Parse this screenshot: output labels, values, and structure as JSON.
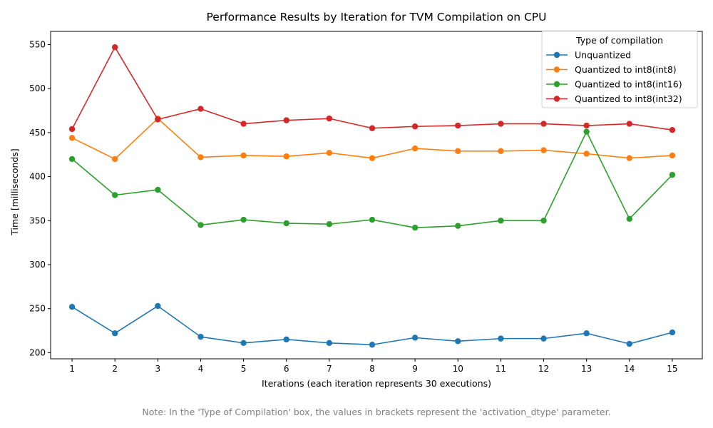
{
  "chart_data": {
    "type": "line",
    "title": "Performance Results by Iteration for TVM Compilation on CPU",
    "xlabel": "Iterations (each iteration represents 30 executions)",
    "ylabel": "Time [milliseconds]",
    "x": [
      1,
      2,
      3,
      4,
      5,
      6,
      7,
      8,
      9,
      10,
      11,
      12,
      13,
      14,
      15
    ],
    "xlim": [
      0.5,
      15.7
    ],
    "ylim": [
      193,
      565
    ],
    "yticks": [
      200,
      250,
      300,
      350,
      400,
      450,
      500,
      550
    ],
    "grid": false,
    "legend": {
      "title": "Type of compilation",
      "placement": "top-right"
    },
    "series": [
      {
        "name": "Unquantized",
        "color": "#1f77b4",
        "values": [
          252,
          222,
          253,
          218,
          211,
          215,
          211,
          209,
          217,
          213,
          216,
          216,
          222,
          210,
          223
        ]
      },
      {
        "name": "Quantized to int8(int8)",
        "color": "#ff7f0e",
        "values": [
          444,
          420,
          466,
          422,
          424,
          423,
          427,
          421,
          432,
          429,
          429,
          430,
          426,
          421,
          424
        ]
      },
      {
        "name": "Quantized to int8(int16)",
        "color": "#2ca02c",
        "values": [
          420,
          379,
          385,
          345,
          351,
          347,
          346,
          351,
          342,
          344,
          350,
          350,
          451,
          352,
          402
        ]
      },
      {
        "name": "Quantized to int8(int32)",
        "color": "#d62728",
        "values": [
          454,
          547,
          465,
          477,
          460,
          464,
          466,
          455,
          457,
          458,
          460,
          460,
          458,
          460,
          453
        ]
      }
    ]
  },
  "note": "Note: In the 'Type of Compilation' box, the values in brackets represent the 'activation_dtype' parameter."
}
